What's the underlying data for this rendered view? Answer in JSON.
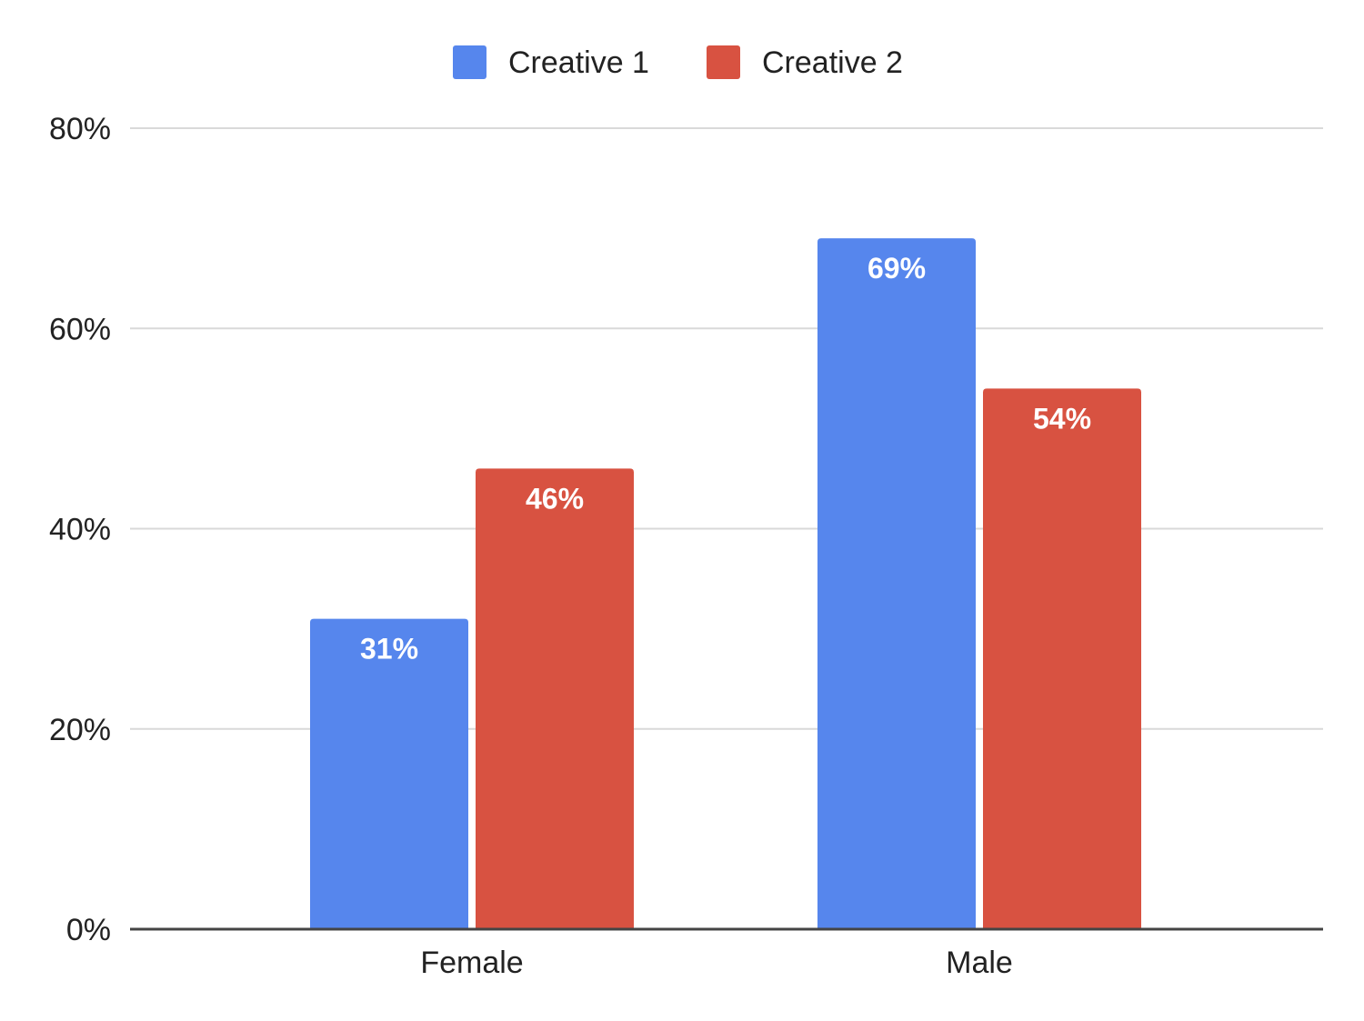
{
  "chart_data": {
    "type": "bar",
    "categories": [
      "Female",
      "Male"
    ],
    "series": [
      {
        "name": "Creative 1",
        "color": "#5686ED",
        "values": [
          31,
          69
        ],
        "labels": [
          "31%",
          "69%"
        ]
      },
      {
        "name": "Creative 2",
        "color": "#D85241",
        "values": [
          46,
          54
        ],
        "labels": [
          "46%",
          "54%"
        ]
      }
    ],
    "ylim": [
      0,
      80
    ],
    "yticks": [
      0,
      20,
      40,
      60,
      80
    ],
    "ytick_labels": [
      "0%",
      "20%",
      "40%",
      "60%",
      "80%"
    ],
    "title": "",
    "xlabel": "",
    "ylabel": "",
    "grid": true,
    "legend_position": "top-center"
  }
}
